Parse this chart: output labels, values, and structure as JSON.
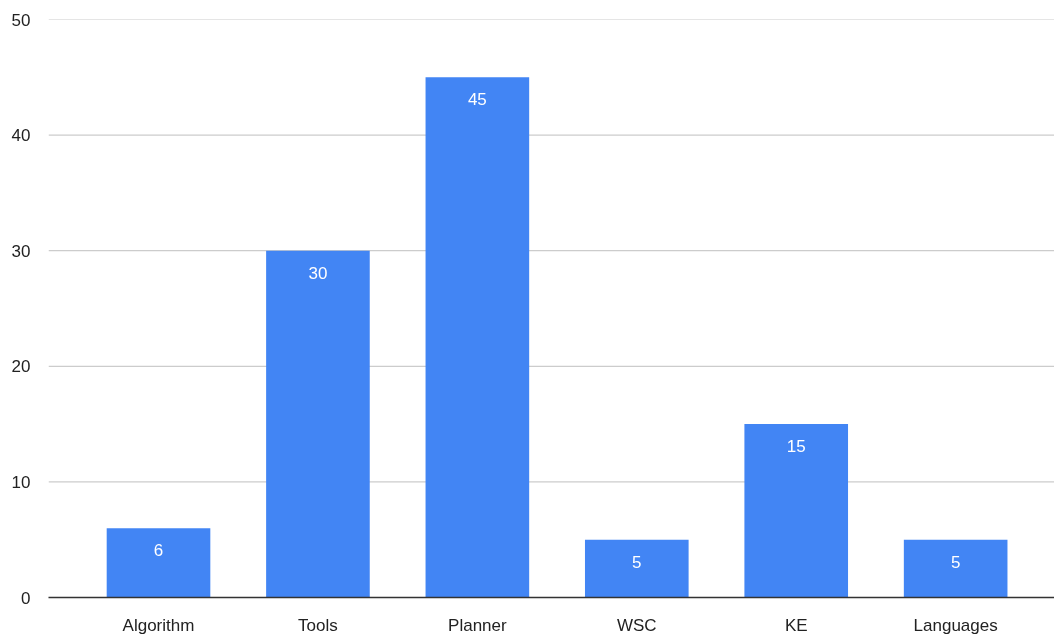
{
  "chart_data": {
    "type": "bar",
    "categories": [
      "Algorithm",
      "Tools",
      "Planner",
      "WSC",
      "KE",
      "Languages"
    ],
    "values": [
      6,
      30,
      45,
      5,
      15,
      5
    ],
    "color": "#4285f4",
    "ylim": [
      0,
      50
    ],
    "yticks": [
      0,
      10,
      20,
      30,
      40,
      50
    ],
    "grid": "y",
    "data_labels": true
  }
}
